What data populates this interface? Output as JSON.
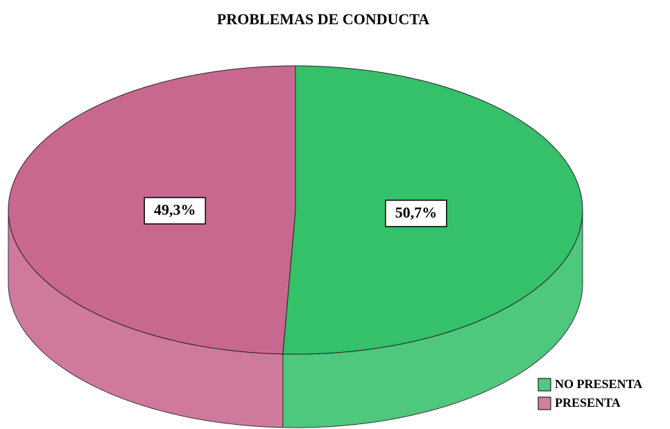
{
  "chart_data": {
    "type": "pie",
    "title": "PROBLEMAS DE CONDUCTA",
    "categories": [
      "NO PRESENTA",
      "PRESENTA"
    ],
    "values": [
      50.7,
      49.3
    ],
    "value_labels": [
      "50,7%",
      "49,3%"
    ],
    "colors": [
      "#35c06a",
      "#c9688f"
    ],
    "legend": "bottom-right"
  }
}
